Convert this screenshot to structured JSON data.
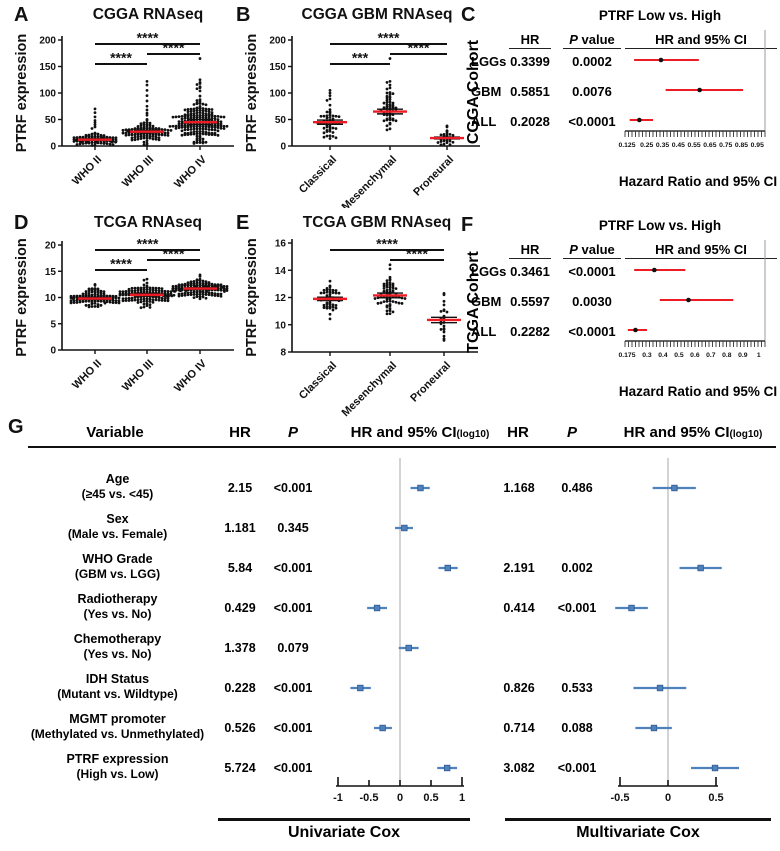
{
  "colors": {
    "red": "#ed1c24",
    "blue": "#4f81bd",
    "gray_axis_line": "#c8c8c8",
    "black": "#111111"
  },
  "chart_data": {
    "scatter_panels": [
      {
        "type": "scatter",
        "letter": "A",
        "title": "CGGA RNAseq",
        "ylabel": "PTRF expression",
        "ylim": [
          0,
          200
        ],
        "yticks": [
          0,
          50,
          100,
          150,
          200
        ],
        "categories": [
          "WHO II",
          "WHO III",
          "WHO IV"
        ],
        "groups": [
          {
            "n": 80,
            "mean": 12,
            "sd": 6,
            "min": 1,
            "max": 30,
            "spread": 22,
            "outliers": [
              33,
              36,
              40,
              44,
              48,
              55,
              63,
              70
            ]
          },
          {
            "n": 100,
            "mean": 27,
            "sd": 11,
            "min": 1,
            "max": 52,
            "spread": 25,
            "outliers": [
              58,
              62,
              68,
              75,
              85,
              95,
              105,
              115,
              122
            ]
          },
          {
            "n": 190,
            "mean": 45,
            "sd": 22,
            "min": 3,
            "max": 100,
            "spread": 30,
            "outliers": [
              104,
              108,
              112,
              116,
              120,
              125,
              118,
              110,
              165
            ]
          }
        ],
        "significance": [
          {
            "pair": [
              0,
              2
            ],
            "stars": "****",
            "level": 0
          },
          {
            "pair": [
              1,
              2
            ],
            "stars": "****",
            "level": 1
          },
          {
            "pair": [
              0,
              1
            ],
            "stars": "****",
            "level": 2
          }
        ]
      },
      {
        "type": "scatter",
        "letter": "B",
        "title": "CGGA GBM RNAseq",
        "ylabel": "PTRF expression",
        "ylim": [
          0,
          200
        ],
        "yticks": [
          0,
          50,
          100,
          150,
          200
        ],
        "categories": [
          "Classical",
          "Mesenchymal",
          "Proneural"
        ],
        "groups": [
          {
            "n": 48,
            "mean": 45,
            "sd": 18,
            "min": 13,
            "max": 90,
            "spread": 24,
            "outliers": [
              95,
              100,
              105
            ]
          },
          {
            "n": 52,
            "mean": 65,
            "sd": 20,
            "min": 25,
            "max": 110,
            "spread": 26,
            "outliers": [
              115,
              120,
              122,
              165
            ]
          },
          {
            "n": 24,
            "mean": 15,
            "sd": 8,
            "min": 2,
            "max": 32,
            "spread": 20,
            "outliers": [
              36,
              38
            ]
          }
        ],
        "significance": [
          {
            "pair": [
              0,
              2
            ],
            "stars": "****",
            "level": 0
          },
          {
            "pair": [
              1,
              2
            ],
            "stars": "****",
            "level": 1
          },
          {
            "pair": [
              0,
              1
            ],
            "stars": "***",
            "level": 2
          }
        ]
      },
      {
        "type": "scatter",
        "letter": "D",
        "title": "TCGA RNAseq",
        "ylabel": "PTRF expression",
        "ylim": [
          0,
          20
        ],
        "yticks": [
          0,
          5,
          10,
          15,
          20
        ],
        "categories": [
          "WHO II",
          "WHO III",
          "WHO IV"
        ],
        "groups": [
          {
            "n": 105,
            "mean": 9.8,
            "sd": 0.8,
            "min": 8.2,
            "max": 12.0,
            "spread": 26,
            "outliers": [
              12.3,
              12.5
            ]
          },
          {
            "n": 125,
            "mean": 10.5,
            "sd": 1.0,
            "min": 7.9,
            "max": 13.0,
            "spread": 27,
            "outliers": [
              13.3,
              13.5
            ]
          },
          {
            "n": 145,
            "mean": 11.7,
            "sd": 0.8,
            "min": 9.6,
            "max": 13.5,
            "spread": 28,
            "outliers": [
              14.0,
              14.3
            ]
          }
        ],
        "significance": [
          {
            "pair": [
              0,
              2
            ],
            "stars": "****",
            "level": 0
          },
          {
            "pair": [
              1,
              2
            ],
            "stars": "****",
            "level": 1
          },
          {
            "pair": [
              0,
              1
            ],
            "stars": "****",
            "level": 2
          }
        ]
      },
      {
        "type": "scatter",
        "letter": "E",
        "title": "TCGA GBM RNAseq",
        "ylabel": "PTRF expression",
        "ylim": [
          8,
          16
        ],
        "yticks": [
          8,
          10,
          12,
          14,
          16
        ],
        "categories": [
          "Classical",
          "Mesenchymal",
          "Proneural"
        ],
        "groups": [
          {
            "n": 48,
            "mean": 11.9,
            "sd": 0.55,
            "min": 10.4,
            "max": 13.0,
            "spread": 22,
            "outliers": [
              13.2
            ]
          },
          {
            "n": 62,
            "mean": 12.15,
            "sd": 0.8,
            "min": 9.9,
            "max": 13.8,
            "spread": 24,
            "outliers": [
              14.1,
              14.4
            ]
          },
          {
            "n": 21,
            "mean": 10.35,
            "sd": 0.9,
            "min": 8.5,
            "max": 12.0,
            "spread": 18,
            "outliers": [
              12.2,
              12.3
            ]
          }
        ],
        "significance": [
          {
            "pair": [
              0,
              2
            ],
            "stars": "****",
            "level": 0
          },
          {
            "pair": [
              1,
              2
            ],
            "stars": "****",
            "level": 1
          }
        ]
      }
    ],
    "forest_panels": [
      {
        "type": "forest",
        "letter": "C",
        "cohort": "CGGA Cohort",
        "title": "PTRF Low vs. High",
        "columns": {
          "hr": "HR",
          "p_italic": "P",
          "p_rest": " value",
          "ci": "HR and 95% CI"
        },
        "rows": [
          {
            "label": "LGGs",
            "hr": "0.3399",
            "p": "0.0002",
            "ci": [
              0.17,
              0.34,
              0.58
            ]
          },
          {
            "label": "GBM",
            "hr": "0.5851",
            "p": "0.0076",
            "ci": [
              0.37,
              0.585,
              0.86
            ]
          },
          {
            "label": "ALL",
            "hr": "0.2028",
            "p": "<0.0001",
            "ci": [
              0.142,
              0.203,
              0.29
            ]
          }
        ],
        "axis": {
          "min": 0.125,
          "max": 0.98,
          "ticks": [
            0.125,
            0.25,
            0.35,
            0.45,
            0.55,
            0.65,
            0.75,
            0.85,
            0.95
          ],
          "tick_labels": [
            "0.125",
            "0.25",
            "0.35",
            "0.45",
            "0.55",
            "0.65",
            "0.75",
            "0.85",
            "0.95"
          ],
          "label": "Hazard Ratio and 95% CI"
        }
      },
      {
        "type": "forest",
        "letter": "F",
        "cohort": "TCGA Cohort",
        "title": "PTRF Low vs. High",
        "columns": {
          "hr": "HR",
          "p_italic": "P",
          "p_rest": " value",
          "ci": "HR and 95% CI"
        },
        "rows": [
          {
            "label": "LGGs",
            "hr": "0.3461",
            "p": "<0.0001",
            "ci": [
              0.22,
              0.346,
              0.54
            ]
          },
          {
            "label": "GBM",
            "hr": "0.5597",
            "p": "0.0030",
            "ci": [
              0.38,
              0.56,
              0.84
            ]
          },
          {
            "label": "ALL",
            "hr": "0.2282",
            "p": "<0.0001",
            "ci": [
              0.18,
              0.228,
              0.3
            ]
          }
        ],
        "axis": {
          "min": 0.175,
          "max": 1.02,
          "ticks": [
            0.175,
            0.3,
            0.4,
            0.5,
            0.6,
            0.7,
            0.8,
            0.9,
            1
          ],
          "tick_labels": [
            "0.175",
            "0.3",
            "0.4",
            "0.5",
            "0.6",
            "0.7",
            "0.8",
            "0.9",
            "1"
          ],
          "label": "Hazard Ratio and 95% CI"
        }
      }
    ],
    "cox_table": {
      "type": "forest-table",
      "letter": "G",
      "headers": {
        "variable": "Variable",
        "hr1": "HR",
        "p1": "P",
        "ci1": "HR and 95% CI",
        "ci1_paren": "(log10)",
        "hr2": "HR",
        "p2": "P",
        "ci2": "HR and 95% CI",
        "ci2_paren": "(log10)"
      },
      "rows": [
        {
          "line1": "Age",
          "line2": "(≥45 vs. <45)",
          "uni": {
            "hr": "2.15",
            "p": "<0.001",
            "ci": [
              0.17,
              0.33,
              0.48
            ]
          },
          "multi": {
            "hr": "1.168",
            "p": "0.486",
            "ci": [
              -0.16,
              0.067,
              0.29
            ]
          }
        },
        {
          "line1": "Sex",
          "line2": "(Male vs. Female)",
          "uni": {
            "hr": "1.181",
            "p": "0.345",
            "ci": [
              -0.08,
              0.07,
              0.21
            ]
          },
          "multi": null
        },
        {
          "line1": "WHO Grade",
          "line2": "(GBM vs. LGG)",
          "uni": {
            "hr": "5.84",
            "p": "<0.001",
            "ci": [
              0.62,
              0.77,
              0.93
            ]
          },
          "multi": {
            "hr": "2.191",
            "p": "0.002",
            "ci": [
              0.12,
              0.34,
              0.56
            ]
          }
        },
        {
          "line1": "Radiotherapy",
          "line2": "(Yes vs. No)",
          "uni": {
            "hr": "0.429",
            "p": "<0.001",
            "ci": [
              -0.53,
              -0.37,
              -0.21
            ]
          },
          "multi": {
            "hr": "0.414",
            "p": "<0.001",
            "ci": [
              -0.55,
              -0.38,
              -0.21
            ]
          }
        },
        {
          "line1": "Chemotherapy",
          "line2": "(Yes vs. No)",
          "uni": {
            "hr": "1.378",
            "p": "0.079",
            "ci": [
              -0.02,
              0.14,
              0.3
            ]
          },
          "multi": null
        },
        {
          "line1": "IDH Status",
          "line2": "(Mutant vs. Wildtype)",
          "uni": {
            "hr": "0.228",
            "p": "<0.001",
            "ci": [
              -0.8,
              -0.64,
              -0.47
            ]
          },
          "multi": {
            "hr": "0.826",
            "p": "0.533",
            "ci": [
              -0.36,
              -0.083,
              0.19
            ]
          }
        },
        {
          "line1": "MGMT promoter",
          "line2": "(Methylated vs. Unmethylated)",
          "uni": {
            "hr": "0.526",
            "p": "<0.001",
            "ci": [
              -0.42,
              -0.28,
              -0.13
            ]
          },
          "multi": {
            "hr": "0.714",
            "p": "0.088",
            "ci": [
              -0.34,
              -0.146,
              0.04
            ]
          }
        },
        {
          "line1": "PTRF expression",
          "line2": "(High vs. Low)",
          "uni": {
            "hr": "5.724",
            "p": "<0.001",
            "ci": [
              0.6,
              0.76,
              0.92
            ]
          },
          "multi": {
            "hr": "3.082",
            "p": "<0.001",
            "ci": [
              0.24,
              0.49,
              0.74
            ]
          }
        }
      ],
      "uni_axis": {
        "ticks": [
          -1,
          -0.5,
          0,
          0.5,
          1
        ],
        "labels": [
          "-1",
          "-0.5",
          "0",
          "0.5",
          "1"
        ],
        "caption": "Univariate Cox"
      },
      "multi_axis": {
        "ticks": [
          -0.5,
          0,
          0.5
        ],
        "labels": [
          "-0.5",
          "0",
          "0.5"
        ],
        "caption": "Multivariate Cox"
      }
    }
  }
}
